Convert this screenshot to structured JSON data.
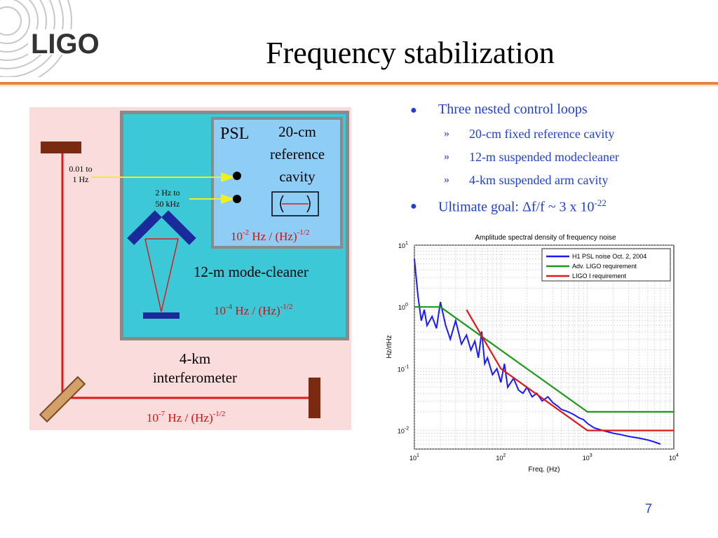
{
  "logo": {
    "text": "LIGO"
  },
  "title": "Frequency stabilization",
  "bullets": {
    "b1": "Three nested control loops",
    "sub": [
      "20-cm fixed reference cavity",
      "12-m suspended modecleaner",
      "4-km suspended arm cavity"
    ],
    "b2_prefix": "Ultimate goal: ",
    "b2_formula": "Δf/f ~ 3 x 10",
    "b2_exp": "-22",
    "raquo": "»",
    "dot": "●"
  },
  "diagram": {
    "psl": "PSL",
    "cavity_lines": [
      "20-cm",
      "reference",
      "cavity"
    ],
    "spec_psl": {
      "base": "10",
      "exp": "-2",
      "unit": " Hz / (Hz)",
      "uexp": "-1/2"
    },
    "modecleaner": "12-m mode-cleaner",
    "spec_mc": {
      "base": "10",
      "exp": "-4",
      "unit": " Hz / (Hz)",
      "uexp": "-1/2"
    },
    "ifo_lines": [
      "4-km",
      "interferometer"
    ],
    "spec_ifo": {
      "base": "10",
      "exp": "-7",
      "unit": " Hz / (Hz)",
      "uexp": "-1/2"
    },
    "band1": [
      "0.01 to",
      "1 Hz"
    ],
    "band2": [
      "2 Hz to",
      "50 kHz"
    ]
  },
  "chart_data": {
    "type": "line",
    "title": "Amplitude spectral density of frequency noise",
    "xlabel": "Freq. (Hz)",
    "ylabel": "Hz/rtHz",
    "xscale": "log",
    "yscale": "log",
    "xlim": [
      10,
      10000
    ],
    "ylim": [
      0.005,
      10
    ],
    "xticks": [
      {
        "base": "10",
        "exp": "1"
      },
      {
        "base": "10",
        "exp": "2"
      },
      {
        "base": "10",
        "exp": "3"
      },
      {
        "base": "10",
        "exp": "4"
      }
    ],
    "yticks": [
      {
        "base": "10",
        "exp": "-2"
      },
      {
        "base": "10",
        "exp": "-1"
      },
      {
        "base": "10",
        "exp": "0"
      },
      {
        "base": "10",
        "exp": "1"
      }
    ],
    "grid": true,
    "legend_position": "top-right",
    "series": [
      {
        "name": "H1 PSL noise Oct. 2, 2004",
        "color": "#1a1aff",
        "x": [
          10,
          11,
          12,
          13,
          14,
          16,
          18,
          20,
          23,
          26,
          30,
          35,
          40,
          45,
          50,
          55,
          60,
          65,
          70,
          80,
          90,
          100,
          110,
          120,
          140,
          160,
          180,
          200,
          230,
          260,
          300,
          350,
          400,
          450,
          500,
          600,
          700,
          800,
          900,
          1000,
          1200,
          1500,
          2000,
          2500,
          3000,
          4000,
          5000,
          6000,
          7000
        ],
        "y": [
          6,
          1.5,
          0.6,
          0.9,
          0.5,
          0.7,
          0.45,
          1.2,
          0.5,
          0.3,
          0.6,
          0.25,
          0.35,
          0.2,
          0.28,
          0.15,
          0.4,
          0.12,
          0.15,
          0.08,
          0.1,
          0.06,
          0.12,
          0.05,
          0.07,
          0.045,
          0.04,
          0.05,
          0.035,
          0.04,
          0.03,
          0.035,
          0.028,
          0.025,
          0.022,
          0.02,
          0.018,
          0.016,
          0.015,
          0.013,
          0.011,
          0.01,
          0.009,
          0.0085,
          0.008,
          0.0075,
          0.007,
          0.0065,
          0.006
        ]
      },
      {
        "name": "Adv. LIGO requirement",
        "color": "#1a9a1a",
        "x": [
          10,
          20,
          1000,
          10000
        ],
        "y": [
          1,
          1,
          0.02,
          0.02
        ]
      },
      {
        "name": "LIGO I requirement",
        "color": "#e01818",
        "x": [
          40,
          100,
          1000,
          10000
        ],
        "y": [
          0.9,
          0.1,
          0.01,
          0.01
        ]
      }
    ]
  },
  "page_number": "7"
}
